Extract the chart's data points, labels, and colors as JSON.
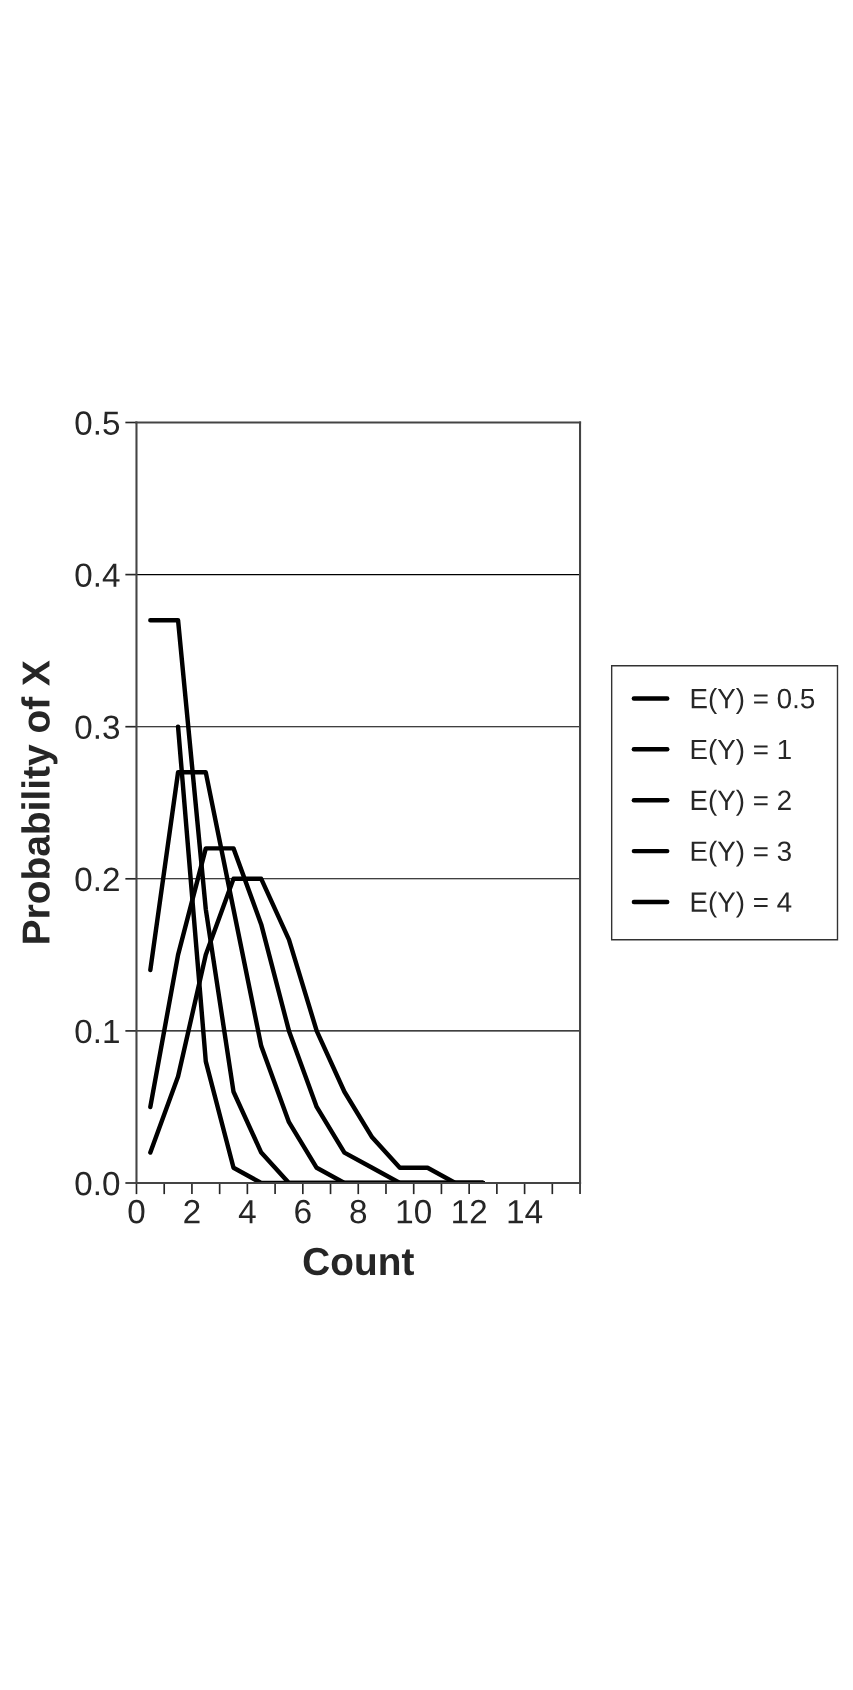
{
  "chart_data": {
    "type": "line",
    "xlabel": "Count",
    "ylabel": "Probability of X",
    "x": [
      0.5,
      1.5,
      2.5,
      3.5,
      4.5,
      5.5,
      6.5,
      7.5,
      8.5,
      9.5,
      10.5,
      11.5,
      12.5
    ],
    "series": [
      {
        "name": "E(Y) = 0.5",
        "color": "#000000",
        "values": [
          null,
          0.3,
          0.08,
          0.01,
          0.0,
          0.0,
          0.0,
          0.0,
          0.0,
          0.0,
          0.0,
          0.0,
          0.0
        ]
      },
      {
        "name": "E(Y) = 1",
        "color": "#000000",
        "values": [
          0.37,
          0.37,
          0.18,
          0.06,
          0.02,
          0.0,
          0.0,
          0.0,
          0.0,
          0.0,
          0.0,
          0.0,
          0.0
        ]
      },
      {
        "name": "E(Y) = 2",
        "color": "#000000",
        "values": [
          0.14,
          0.27,
          0.27,
          0.18,
          0.09,
          0.04,
          0.01,
          0.0,
          0.0,
          0.0,
          0.0,
          0.0,
          0.0
        ]
      },
      {
        "name": "E(Y) = 3",
        "color": "#000000",
        "values": [
          0.05,
          0.15,
          0.22,
          0.22,
          0.17,
          0.1,
          0.05,
          0.02,
          0.01,
          0.0,
          0.0,
          0.0,
          0.0
        ]
      },
      {
        "name": "E(Y) = 4",
        "color": "#000000",
        "values": [
          0.02,
          0.07,
          0.15,
          0.2,
          0.2,
          0.16,
          0.1,
          0.06,
          0.03,
          0.01,
          0.01,
          0.0,
          0.0
        ]
      }
    ],
    "xlim": [
      0,
      16
    ],
    "xticks": [
      0,
      {
        "value": 1,
        "label": null
      },
      2,
      {
        "value": 3,
        "label": null
      },
      4,
      {
        "value": 5,
        "label": null
      },
      6,
      {
        "value": 7,
        "label": null
      },
      8,
      {
        "value": 9,
        "label": null
      },
      10,
      {
        "value": 11,
        "label": null
      },
      12,
      {
        "value": 13,
        "label": null
      },
      14,
      {
        "value": 15,
        "label": null
      },
      {
        "value": 16,
        "label": null
      }
    ],
    "ylim": [
      0,
      0.5
    ],
    "yticks": [
      {
        "value": 0,
        "label": "0.0"
      },
      0.1,
      0.2,
      0.3,
      0.4,
      0.5
    ],
    "grid": "y",
    "legend": "right",
    "marker": "none",
    "line_style": "solid"
  }
}
